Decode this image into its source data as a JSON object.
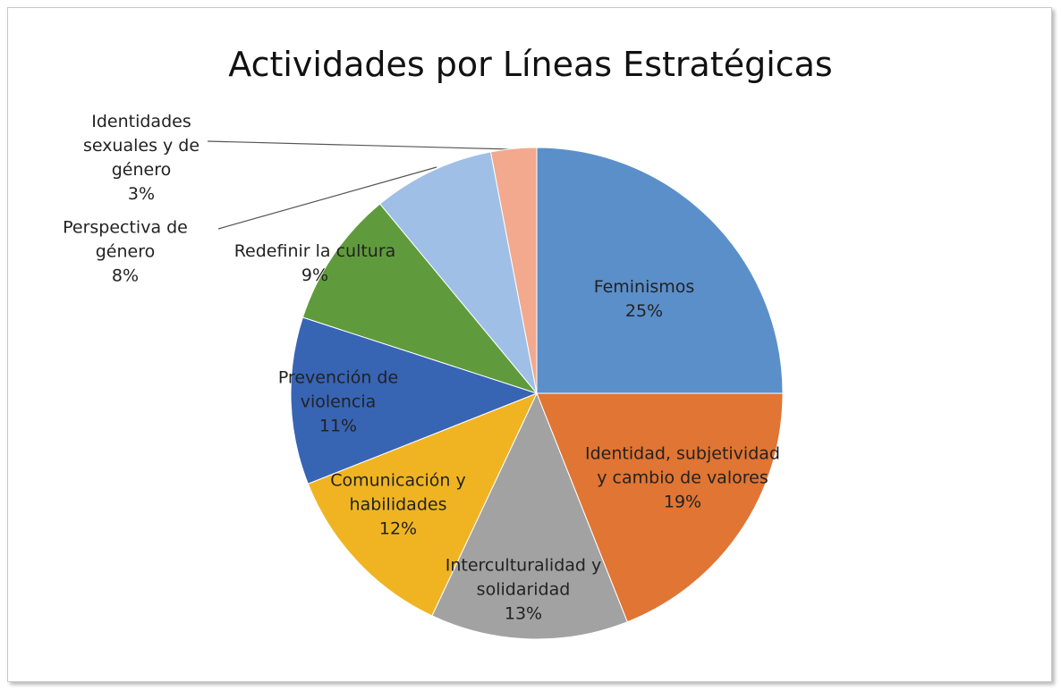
{
  "chart_data": {
    "type": "pie",
    "title": "Actividades por Líneas Estratégicas",
    "categories": [
      "Feminismos",
      "Identidad, subjetividad y cambio de valores",
      "Interculturalidad y solidaridad",
      "Comunicación y habilidades",
      "Prevención de violencia",
      "Redefinir la cultura",
      "Perspectiva de género",
      "Identidades sexuales y de género"
    ],
    "values": [
      25,
      19,
      13,
      12,
      11,
      9,
      8,
      3
    ],
    "value_labels": [
      "25%",
      "19%",
      "13%",
      "12%",
      "11%",
      "9%",
      "8%",
      "3%"
    ],
    "colors": [
      "#5b8fca",
      "#e07534",
      "#a2a2a2",
      "#f0b423",
      "#3864b4",
      "#5f9b3c",
      "#9fbfe6",
      "#f2a98e"
    ]
  }
}
